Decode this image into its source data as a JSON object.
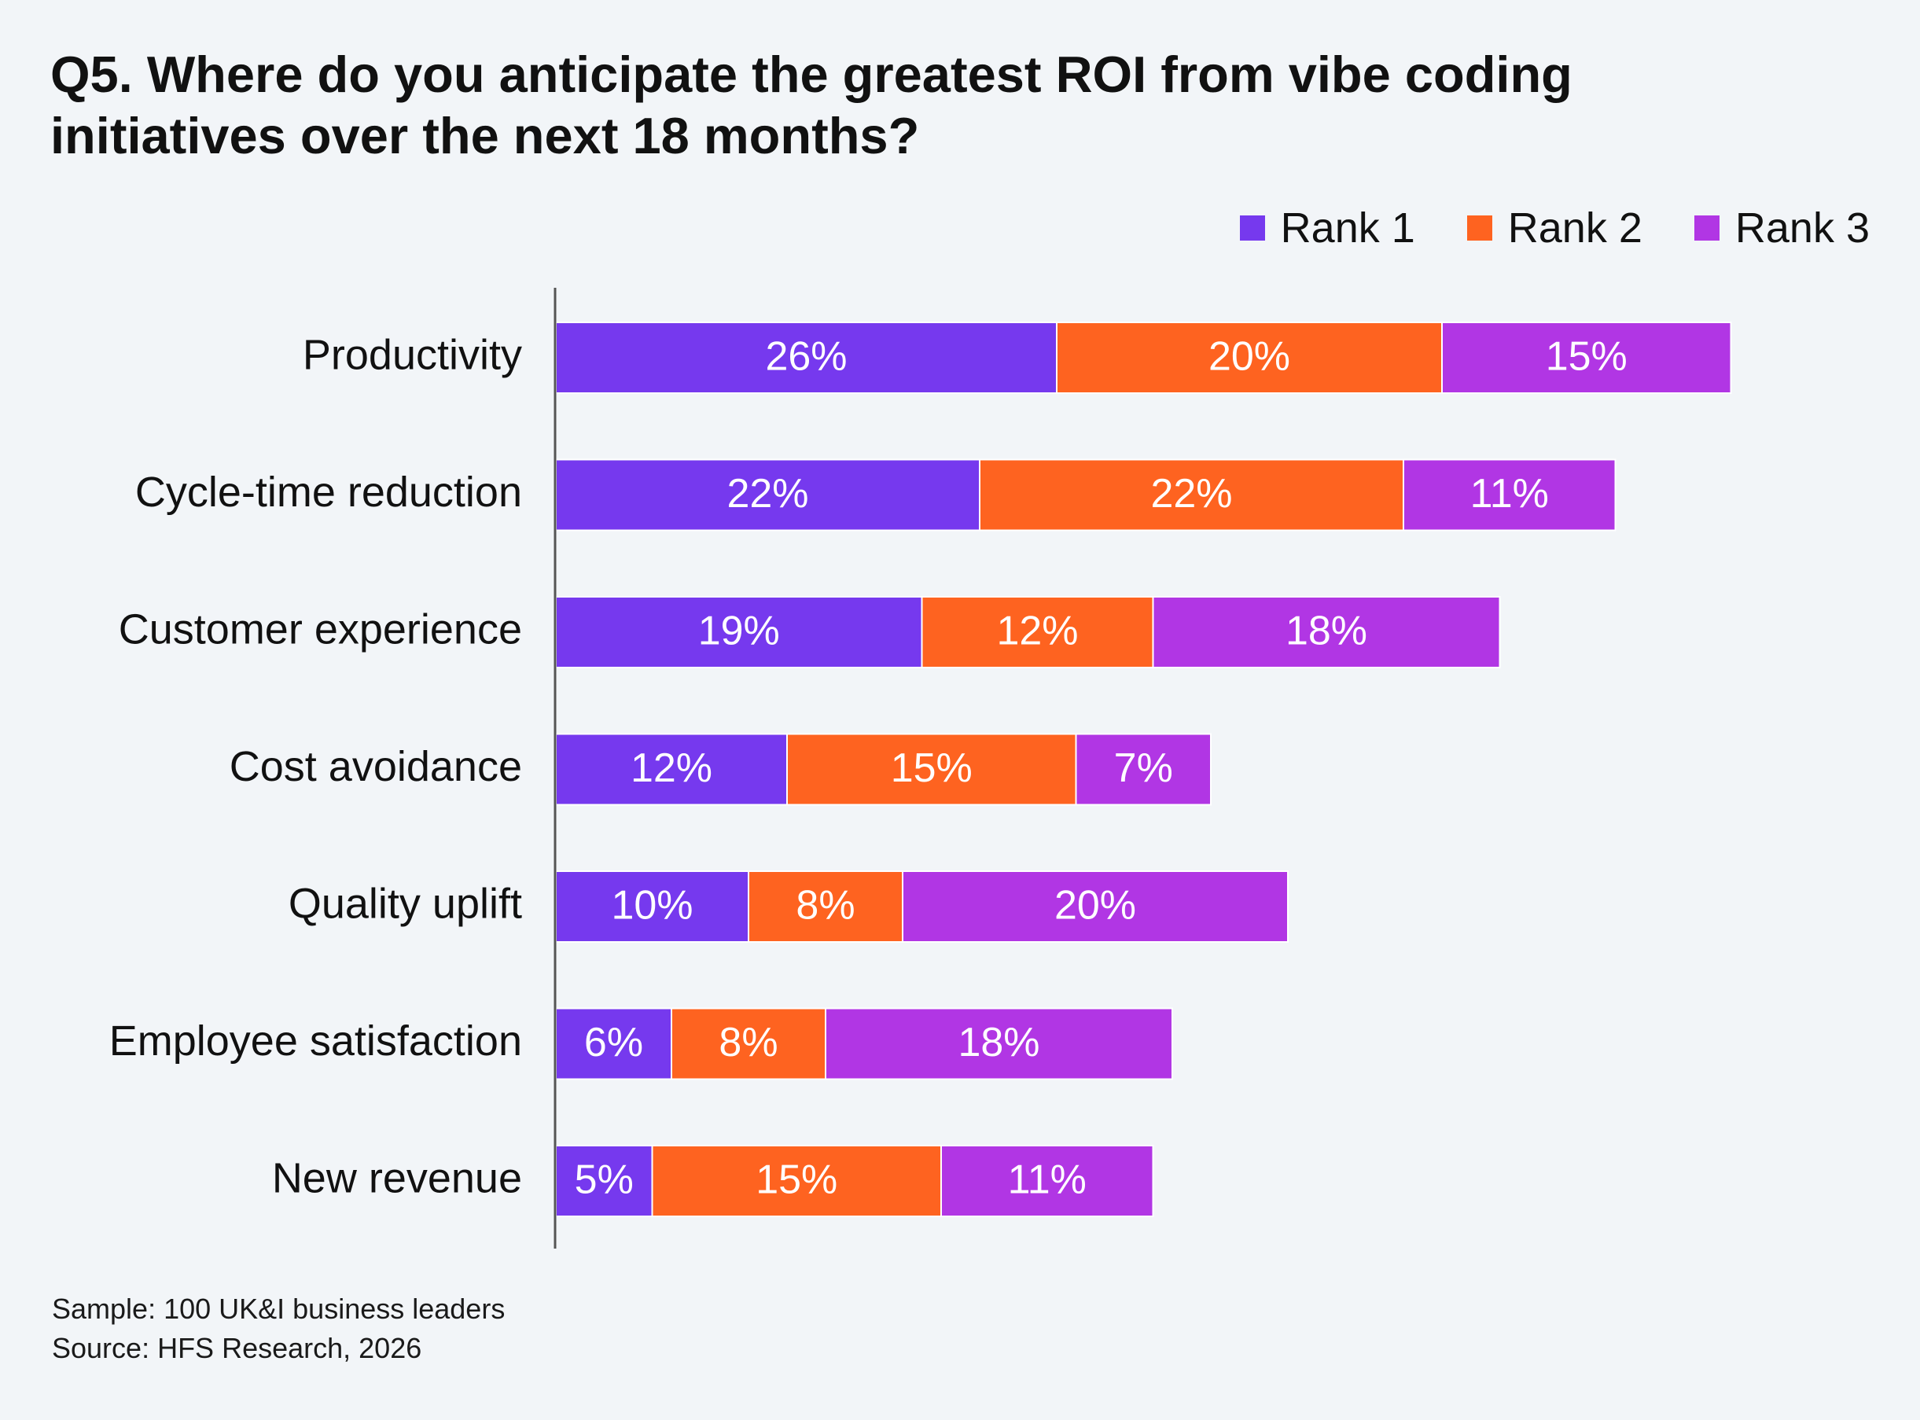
{
  "chart_data": {
    "type": "bar",
    "orientation": "horizontal",
    "stacked": true,
    "title": "Q5. Where do you anticipate the greatest ROI from vibe coding initiatives over the next 18 months?",
    "categories": [
      "Productivity",
      "Cycle-time reduction",
      "Customer experience",
      "Cost avoidance",
      "Quality uplift",
      "Employee satisfaction",
      "New revenue"
    ],
    "series": [
      {
        "name": "Rank 1",
        "color": "#7639ee",
        "values": [
          26,
          22,
          19,
          12,
          10,
          6,
          5
        ]
      },
      {
        "name": "Rank 2",
        "color": "#fe6320",
        "values": [
          20,
          22,
          12,
          15,
          8,
          8,
          15
        ]
      },
      {
        "name": "Rank 3",
        "color": "#b136e4",
        "values": [
          15,
          11,
          18,
          7,
          20,
          18,
          11
        ]
      }
    ],
    "value_suffix": "%",
    "xlabel": "",
    "ylabel": "",
    "grid": false,
    "legend_position": "top-right"
  },
  "footer": {
    "sample": "Sample: 100 UK&I business leaders",
    "source": "Source: HFS Research, 2026"
  }
}
